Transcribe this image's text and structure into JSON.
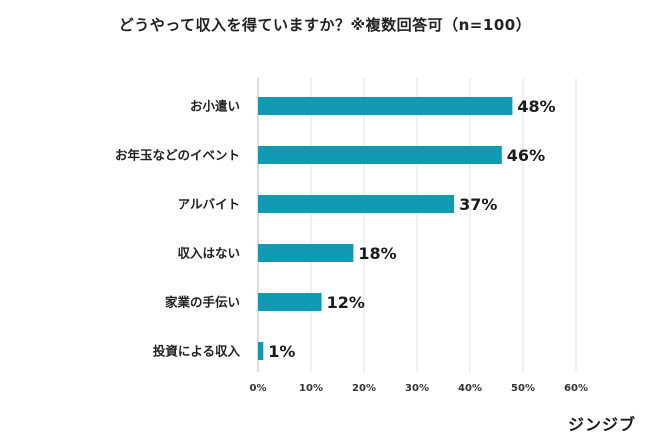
{
  "chart_data": {
    "type": "bar",
    "orientation": "horizontal",
    "title": "どうやって収入を得ていますか？※複数回答可（n=100）",
    "categories": [
      "お小遣い",
      "お年玉などのイベント",
      "アルバイト",
      "収入はない",
      "家業の手伝い",
      "投資による収入"
    ],
    "values": [
      48,
      46,
      37,
      18,
      12,
      1
    ],
    "value_labels": [
      "48%",
      "46%",
      "37%",
      "18%",
      "12%",
      "1%"
    ],
    "xlim": [
      0,
      60
    ],
    "x_ticks": [
      0,
      10,
      20,
      30,
      40,
      50,
      60
    ],
    "x_tick_labels": [
      "0%",
      "10%",
      "20%",
      "30%",
      "40%",
      "50%",
      "60%"
    ],
    "grid": true,
    "bar_color": "#0f9ab1",
    "grid_color": "#e3e3e3"
  },
  "brand": "ジンジブ"
}
